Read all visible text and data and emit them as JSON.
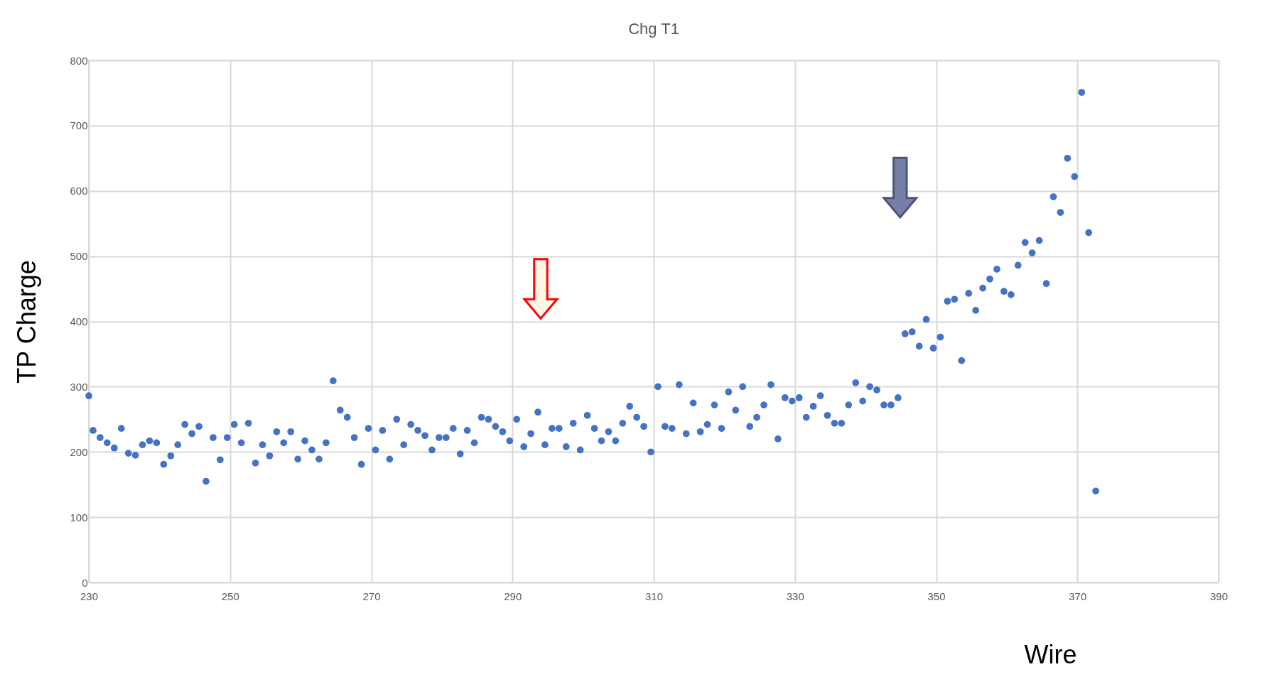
{
  "chart_data": {
    "type": "scatter",
    "title": "Chg T1",
    "xlabel": "Wire",
    "ylabel": "TP Charge",
    "x": [
      230,
      230.6,
      231.6,
      232.6,
      233.6,
      234.6,
      235.6,
      236.6,
      237.6,
      238.6,
      239.6,
      240.6,
      241.6,
      242.6,
      243.6,
      244.6,
      245.6,
      246.6,
      247.6,
      248.6,
      249.6,
      250.6,
      251.6,
      252.6,
      253.6,
      254.6,
      255.6,
      256.6,
      257.6,
      258.6,
      259.6,
      260.6,
      261.6,
      262.6,
      263.6,
      264.6,
      265.6,
      266.6,
      267.6,
      268.6,
      269.6,
      270.6,
      271.6,
      272.6,
      273.6,
      274.6,
      275.6,
      276.6,
      277.6,
      278.6,
      279.6,
      280.6,
      281.6,
      282.6,
      283.6,
      284.6,
      285.6,
      286.6,
      287.6,
      288.6,
      289.6,
      290.6,
      291.6,
      292.6,
      293.6,
      294.6,
      295.6,
      296.6,
      297.6,
      298.6,
      299.6,
      300.6,
      301.6,
      302.6,
      303.6,
      304.6,
      305.6,
      306.6,
      307.6,
      308.6,
      309.6,
      310.6,
      311.6,
      312.6,
      313.6,
      314.6,
      315.6,
      316.6,
      317.6,
      318.6,
      319.6,
      320.6,
      321.6,
      322.6,
      323.6,
      324.6,
      325.6,
      326.6,
      327.6,
      328.6,
      329.6,
      330.6,
      331.6,
      332.6,
      333.6,
      334.6,
      335.6,
      336.6,
      337.6,
      338.6,
      339.6,
      340.6,
      341.6,
      342.6,
      343.6,
      344.6,
      345.6,
      346.6,
      347.6,
      348.6,
      349.6,
      350.6,
      351.6,
      352.6,
      353.6,
      354.6,
      355.6,
      356.6,
      357.6,
      358.6,
      359.6,
      360.6,
      361.6,
      362.6,
      363.6,
      364.6,
      365.6,
      366.6,
      367.6,
      368.6,
      369.6,
      370.6,
      371.6,
      372.6
    ],
    "series": [
      {
        "color": "#4472c4",
        "values": [
          286,
          233,
          222,
          214,
          206,
          236,
          198,
          195,
          211,
          217,
          214,
          181,
          194,
          211,
          242,
          228,
          239,
          155,
          222,
          188,
          222,
          242,
          214,
          244,
          183,
          211,
          194,
          231,
          214,
          231,
          189,
          217,
          203,
          189,
          214,
          309,
          264,
          253,
          222,
          181,
          236,
          203,
          233,
          189,
          250,
          211,
          242,
          233,
          225,
          203,
          222,
          222,
          236,
          197,
          233,
          214,
          253,
          250,
          239,
          231,
          217,
          250,
          208,
          228,
          261,
          211,
          236,
          236,
          208,
          244,
          203,
          256,
          236,
          217,
          231,
          217,
          244,
          270,
          253,
          239,
          200,
          300,
          239,
          236,
          303,
          228,
          275,
          231,
          242,
          272,
          236,
          292,
          264,
          300,
          239,
          253,
          272,
          303,
          220,
          283,
          278,
          283,
          253,
          270,
          286,
          256,
          244,
          244,
          272,
          306,
          278,
          300,
          295,
          272,
          272,
          283,
          381,
          384,
          362,
          403,
          359,
          376,
          431,
          434,
          340,
          443,
          417,
          451,
          465,
          480,
          446,
          441,
          486,
          521,
          505,
          524,
          458,
          591,
          567,
          650,
          622,
          751,
          536,
          140
        ]
      }
    ],
    "xlim": [
      230,
      390
    ],
    "xticks": [
      230,
      250,
      270,
      290,
      310,
      330,
      350,
      370,
      390
    ],
    "ylim": [
      0,
      800
    ],
    "yticks": [
      0,
      100,
      200,
      300,
      400,
      500,
      600,
      700,
      800
    ],
    "grid": true,
    "legend": false,
    "marker": "circle"
  }
}
